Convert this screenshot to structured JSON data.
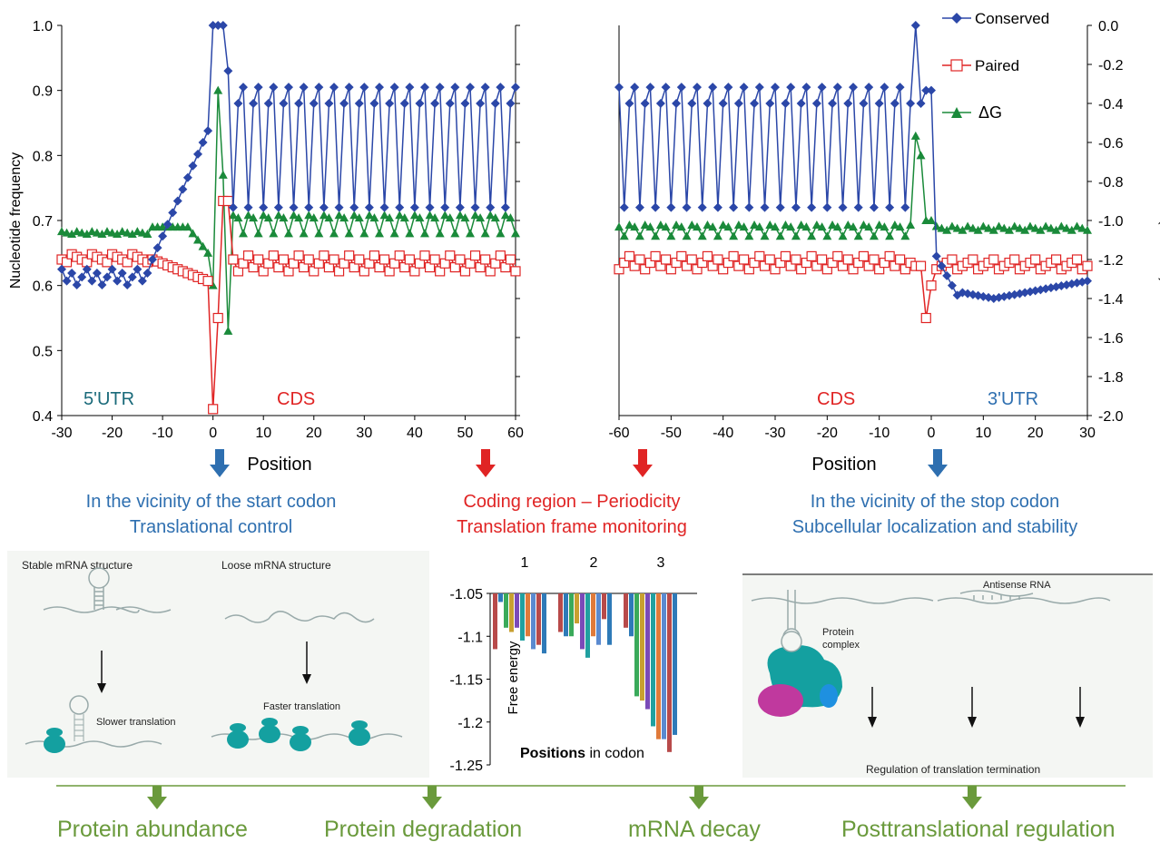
{
  "colors": {
    "conserved": "#2b47a8",
    "paired": "#e02424",
    "dg": "#1a8a3a",
    "blue_text": "#2e6fb0",
    "red_text": "#e02424",
    "green_text": "#6a9a3c",
    "arrow_blue": "#2e6fb0",
    "arrow_red": "#e02424",
    "arrow_green": "#6a9a3c",
    "teal": "#14a0a0",
    "magenta": "#c0399e",
    "lightblue": "#1e90e0"
  },
  "top_left": {
    "y_axis_label": "Nucleotide frequency",
    "y_ticks": [
      "1.0",
      "0.9",
      "0.8",
      "0.7",
      "0.6",
      "0.5",
      "0.4"
    ],
    "x_ticks": [
      "-30",
      "-20",
      "-10",
      "0",
      "10",
      "20",
      "30",
      "40",
      "50",
      "60"
    ],
    "x_axis_label": "Position",
    "region_left": "5'UTR",
    "region_right": "CDS"
  },
  "top_right": {
    "x_ticks": [
      "-60",
      "-50",
      "-40",
      "-30",
      "-20",
      "-10",
      "0",
      "10",
      "20",
      "30"
    ],
    "x_axis_label": "Position",
    "right_axis_label": "ΔG (kcal/mol)",
    "right_ticks": [
      "0.0",
      "-0.2",
      "-0.4",
      "-0.6",
      "-0.8",
      "-1.0",
      "-1.2",
      "-1.4",
      "-1.6",
      "-1.8",
      "-2.0"
    ],
    "region_left": "CDS",
    "region_right": "3'UTR",
    "legend": [
      "Conserved",
      "Paired",
      "ΔG"
    ]
  },
  "captions": {
    "start_1": "In the vicinity of the start codon",
    "start_2": "Translational control",
    "coding_1": "Coding region – Periodicity",
    "coding_2": "Translation frame monitoring",
    "stop_1": "In the vicinity of the stop codon",
    "stop_2": "Subcellular localization and stability"
  },
  "panel_left": {
    "stable": "Stable mRNA structure",
    "loose": "Loose mRNA structure",
    "slower": "Slower translation",
    "faster": "Faster translation"
  },
  "bar_chart": {
    "y_label": "Free energy",
    "y_ticks": [
      "-1.05",
      "-1.1",
      "-1.15",
      "-1.2",
      "-1.25"
    ],
    "x_label_bold": "Positions",
    "x_label_rest": " in codon",
    "group_labels": [
      "1",
      "2",
      "3"
    ]
  },
  "panel_right": {
    "antisense": "Antisense RNA",
    "protein_complex_1": "Protein",
    "protein_complex_2": "complex",
    "regulation": "Regulation of translation termination"
  },
  "outcomes": [
    "Protein abundance",
    "Protein degradation",
    "mRNA decay",
    "Posttranslational regulation"
  ]
}
